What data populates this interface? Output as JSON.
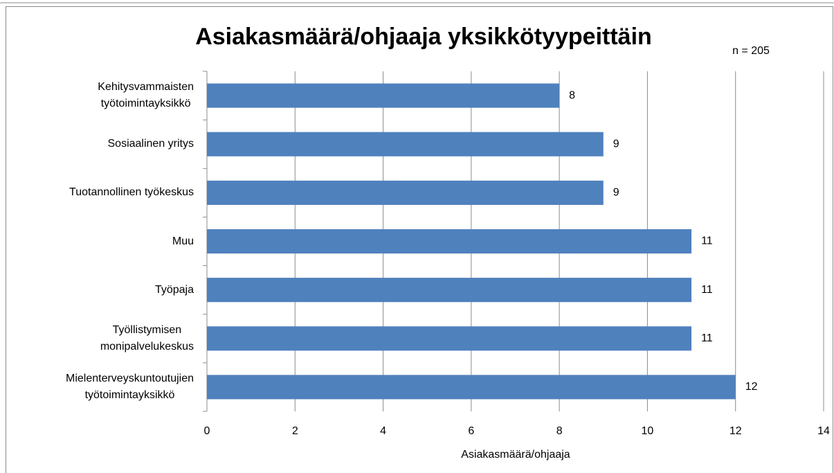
{
  "chart_data": {
    "type": "bar",
    "orientation": "horizontal",
    "title": "Asiakasmäärä/ohjaaja yksikkötyypeittäin",
    "annotation": "n = 205",
    "x_label": "Asiakasmäärä/ohjaaja",
    "categories": [
      "Kehitysvammaisten\ntyötoimintayksikkö",
      "Sosiaalinen yritys",
      "Tuotannollinen työkeskus",
      "Muu",
      "Työpaja",
      "Työllistymisen\nmonipalvelukeskus",
      "Mielenterveyskuntoutujien\ntyötoimintayksikkö"
    ],
    "values": [
      8,
      9,
      9,
      11,
      11,
      11,
      12
    ],
    "color": "#4f81bd",
    "xlim": [
      0,
      14
    ],
    "xticks": [
      0,
      2,
      4,
      6,
      8,
      10,
      12,
      14
    ],
    "grid": true
  }
}
